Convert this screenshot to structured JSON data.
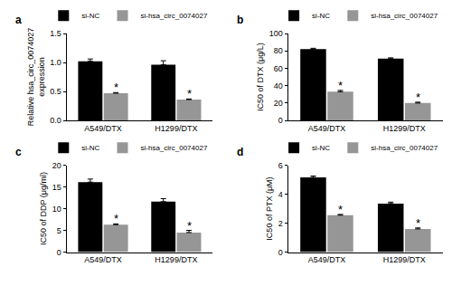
{
  "chart_data": [
    {
      "type": "bar",
      "title": "a",
      "ylabel": "Relative hsa_circ_0074027\nexpression",
      "categories": [
        "A549/DTX",
        "H1299/DTX"
      ],
      "series": [
        {
          "name": "si-NC",
          "color": "#000000",
          "values": [
            1.02,
            0.96
          ],
          "errors": [
            0.04,
            0.07
          ]
        },
        {
          "name": "si-hsa_circ_0074027",
          "color": "#969696",
          "values": [
            0.47,
            0.36
          ],
          "errors": [
            0.01,
            0.01
          ]
        }
      ],
      "ylim": [
        0,
        1.5
      ],
      "yticks": [
        {
          "value": 0,
          "label": "0.0"
        },
        0.5,
        {
          "value": 1,
          "label": "1.0"
        },
        1.5
      ],
      "legend": "top",
      "annotations": [
        {
          "text": "*",
          "category": "A549/DTX",
          "series": "si-hsa_circ_0074027"
        },
        {
          "text": "*",
          "category": "H1299/DTX",
          "series": "si-hsa_circ_0074027"
        }
      ]
    },
    {
      "type": "bar",
      "title": "b",
      "ylabel": "IC50 of DTX (μg/L)",
      "categories": [
        "A549/DTX",
        "H1299/DTX"
      ],
      "series": [
        {
          "name": "si-NC",
          "color": "#000000",
          "values": [
            82,
            71
          ],
          "errors": [
            1,
            1
          ]
        },
        {
          "name": "si-hsa_circ_0074027",
          "color": "#969696",
          "values": [
            33,
            20
          ],
          "errors": [
            1.5,
            1
          ]
        }
      ],
      "ylim": [
        0,
        100
      ],
      "yticks": [
        0,
        20,
        40,
        60,
        80,
        100
      ],
      "legend": "top",
      "annotations": [
        {
          "text": "*",
          "category": "A549/DTX",
          "series": "si-hsa_circ_0074027"
        },
        {
          "text": "*",
          "category": "H1299/DTX",
          "series": "si-hsa_circ_0074027"
        }
      ]
    },
    {
      "type": "bar",
      "title": "c",
      "ylabel": "IC50 of DDP (μg/ml)",
      "categories": [
        "A549/DTX",
        "H1299/DTX"
      ],
      "series": [
        {
          "name": "si-NC",
          "color": "#000000",
          "values": [
            16.1,
            11.6
          ],
          "errors": [
            0.7,
            0.7
          ]
        },
        {
          "name": "si-hsa_circ_0074027",
          "color": "#969696",
          "values": [
            6.3,
            4.5
          ],
          "errors": [
            0.2,
            0.5
          ]
        }
      ],
      "ylim": [
        0,
        20
      ],
      "yticks": [
        0,
        5,
        10,
        15,
        20
      ],
      "legend": "top",
      "annotations": [
        {
          "text": "*",
          "category": "A549/DTX",
          "series": "si-hsa_circ_0074027"
        },
        {
          "text": "*",
          "category": "H1299/DTX",
          "series": "si-hsa_circ_0074027"
        }
      ]
    },
    {
      "type": "bar",
      "title": "d",
      "ylabel": "IC50 of PTX (μM)",
      "categories": [
        "A549/DTX",
        "H1299/DTX"
      ],
      "series": [
        {
          "name": "si-NC",
          "color": "#000000",
          "values": [
            5.15,
            3.35
          ],
          "errors": [
            0.1,
            0.1
          ]
        },
        {
          "name": "si-hsa_circ_0074027",
          "color": "#969696",
          "values": [
            2.55,
            1.6
          ],
          "errors": [
            0.05,
            0.07
          ]
        }
      ],
      "ylim": [
        0,
        6
      ],
      "yticks": [
        0,
        2,
        4,
        6
      ],
      "legend": "top",
      "annotations": [
        {
          "text": "*",
          "category": "A549/DTX",
          "series": "si-hsa_circ_0074027"
        },
        {
          "text": "*",
          "category": "H1299/DTX",
          "series": "si-hsa_circ_0074027"
        }
      ]
    }
  ]
}
